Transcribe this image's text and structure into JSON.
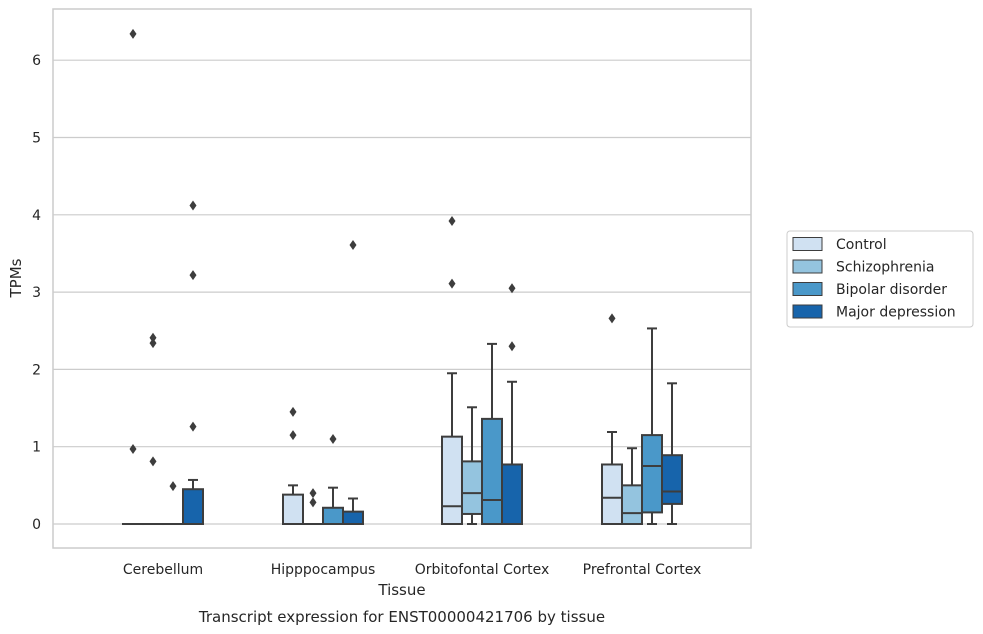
{
  "chart_data": {
    "type": "box",
    "title": "",
    "caption": "Transcript expression for ENST00000421706 by tissue",
    "xlabel": "Tissue",
    "ylabel": "TPMs",
    "ylim": [
      -0.3,
      6.65
    ],
    "yticks": [
      "0",
      "1",
      "2",
      "3",
      "4",
      "5",
      "6"
    ],
    "grid": "horizontal",
    "legend_position": "right",
    "categories": [
      "Cerebellum",
      "Hipppocampus",
      "Orbitofontal Cortex",
      "Prefrontal Cortex"
    ],
    "series": [
      {
        "name": "Control",
        "color": "#d0e1f2",
        "boxes": [
          {
            "q1": 0,
            "median": 0,
            "q3": 0,
            "whisker_low": 0,
            "whisker_high": 0,
            "outliers": [
              0.97,
              6.34
            ]
          },
          {
            "q1": 0,
            "median": 0,
            "q3": 0.38,
            "whisker_low": 0,
            "whisker_high": 0.5,
            "outliers": [
              1.15,
              1.45
            ]
          },
          {
            "q1": 0,
            "median": 0.23,
            "q3": 1.13,
            "whisker_low": 0,
            "whisker_high": 1.95,
            "outliers": [
              3.11,
              3.92
            ]
          },
          {
            "q1": 0,
            "median": 0.34,
            "q3": 0.77,
            "whisker_low": 0,
            "whisker_high": 1.19,
            "outliers": [
              2.66
            ]
          }
        ]
      },
      {
        "name": "Schizophrenia",
        "color": "#94c4df",
        "boxes": [
          {
            "q1": 0,
            "median": 0,
            "q3": 0,
            "whisker_low": 0,
            "whisker_high": 0,
            "outliers": [
              0.81,
              2.34,
              2.41
            ]
          },
          {
            "q1": 0,
            "median": 0,
            "q3": 0,
            "whisker_low": 0,
            "whisker_high": 0,
            "outliers": [
              0.28,
              0.4
            ]
          },
          {
            "q1": 0.13,
            "median": 0.4,
            "q3": 0.81,
            "whisker_low": 0,
            "whisker_high": 1.51,
            "outliers": []
          },
          {
            "q1": 0,
            "median": 0.14,
            "q3": 0.5,
            "whisker_low": 0,
            "whisker_high": 0.98,
            "outliers": []
          }
        ]
      },
      {
        "name": "Bipolar disorder",
        "color": "#4a98c9",
        "boxes": [
          {
            "q1": 0,
            "median": 0,
            "q3": 0,
            "whisker_low": 0,
            "whisker_high": 0,
            "outliers": [
              0.49
            ]
          },
          {
            "q1": 0,
            "median": 0,
            "q3": 0.21,
            "whisker_low": 0,
            "whisker_high": 0.47,
            "outliers": [
              1.1
            ]
          },
          {
            "q1": 0,
            "median": 0.31,
            "q3": 1.36,
            "whisker_low": 0,
            "whisker_high": 2.33,
            "outliers": []
          },
          {
            "q1": 0.15,
            "median": 0.75,
            "q3": 1.15,
            "whisker_low": 0,
            "whisker_high": 2.53,
            "outliers": []
          }
        ]
      },
      {
        "name": "Major depression",
        "color": "#1764ab",
        "boxes": [
          {
            "q1": 0,
            "median": 0,
            "q3": 0.45,
            "whisker_low": 0,
            "whisker_high": 0.57,
            "outliers": [
              1.26,
              3.22,
              4.12
            ]
          },
          {
            "q1": 0,
            "median": 0,
            "q3": 0.16,
            "whisker_low": 0,
            "whisker_high": 0.33,
            "outliers": [
              3.61
            ]
          },
          {
            "q1": 0,
            "median": 0,
            "q3": 0.77,
            "whisker_low": 0,
            "whisker_high": 1.84,
            "outliers": [
              2.3,
              3.05
            ]
          },
          {
            "q1": 0.26,
            "median": 0.42,
            "q3": 0.89,
            "whisker_low": 0,
            "whisker_high": 1.82,
            "outliers": []
          }
        ]
      }
    ]
  }
}
